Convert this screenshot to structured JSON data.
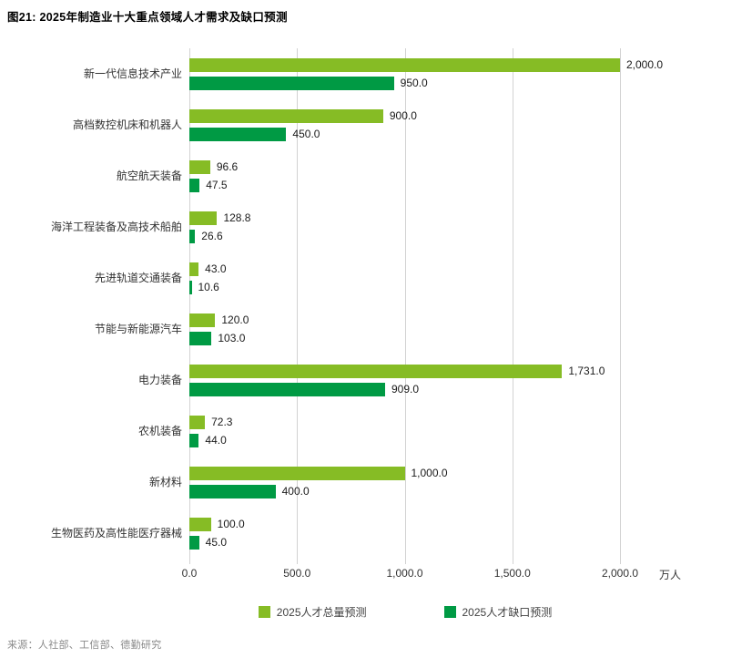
{
  "title": "图21: 2025年制造业十大重点领域人才需求及缺口预测",
  "source": "来源：人社部、工信部、德勤研究",
  "colors": {
    "total_series": "#86BC25",
    "gap_series": "#009A44",
    "gridline": "#D2D2D2"
  },
  "legend": [
    {
      "label": "2025人才总量预测",
      "color": "#86BC25"
    },
    {
      "label": "2025人才缺口预测",
      "color": "#009A44"
    }
  ],
  "chart_data": {
    "type": "bar",
    "orientation": "horizontal",
    "title": "图21: 2025年制造业十大重点领域人才需求及缺口预测",
    "xlabel": "万人",
    "ylabel": "",
    "xlim": [
      0,
      2000
    ],
    "grid": true,
    "legend_position": "bottom",
    "categories": [
      "新一代信息技术产业",
      "高档数控机床和机器人",
      "航空航天装备",
      "海洋工程装备及高技术船舶",
      "先进轨道交通装备",
      "节能与新能源汽车",
      "电力装备",
      "农机装备",
      "新材料",
      "生物医药及高性能医疗器械"
    ],
    "series": [
      {
        "name": "2025人才总量预测",
        "color": "#86BC25",
        "values": [
          2000.0,
          900.0,
          96.6,
          128.8,
          43.0,
          120.0,
          1731.0,
          72.3,
          1000.0,
          100.0
        ],
        "value_labels": [
          "2,000.0",
          "900.0",
          "96.6",
          "128.8",
          "43.0",
          "120.0",
          "1,731.0",
          "72.3",
          "1,000.0",
          "100.0"
        ]
      },
      {
        "name": "2025人才缺口预测",
        "color": "#009A44",
        "values": [
          950.0,
          450.0,
          47.5,
          26.6,
          10.6,
          103.0,
          909.0,
          44.0,
          400.0,
          45.0
        ],
        "value_labels": [
          "950.0",
          "450.0",
          "47.5",
          "26.6",
          "10.6",
          "103.0",
          "909.0",
          "44.0",
          "400.0",
          "45.0"
        ]
      }
    ],
    "x_ticks": [
      "0.0",
      "500.0",
      "1,000.0",
      "1,500.0",
      "2,000.0"
    ],
    "x_tick_values": [
      0,
      500,
      1000,
      1500,
      2000
    ]
  }
}
